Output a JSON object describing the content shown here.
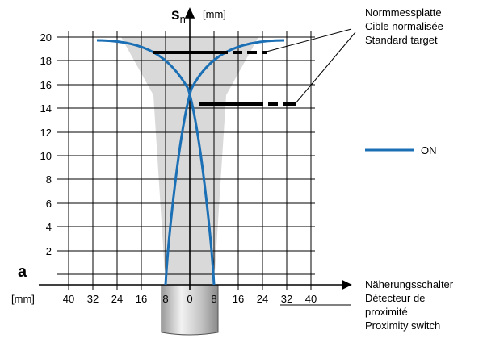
{
  "diagram": {
    "y_axis": {
      "symbol_main": "s",
      "symbol_sub": "n",
      "unit": "[mm]",
      "ticks": [
        "20",
        "18",
        "16",
        "14",
        "12",
        "10",
        "8",
        "6",
        "4",
        "2"
      ]
    },
    "x_axis": {
      "symbol": "a",
      "unit": "[mm]",
      "ticks": [
        "40",
        "32",
        "24",
        "16",
        "8",
        "0",
        "8",
        "16",
        "24",
        "32",
        "40"
      ]
    },
    "target_label": [
      "Normmessplatte",
      "Cible normalisée",
      "Standard target"
    ],
    "legend": {
      "label": "ON",
      "color": "#1a6fb5"
    },
    "switch_label": [
      "Näherungsschalter",
      "Détecteur de",
      "proximité",
      "Proximity switch"
    ],
    "colors": {
      "curve": "#1a6fb5",
      "zone": "#d9d9d9",
      "grid": "#000000"
    }
  }
}
